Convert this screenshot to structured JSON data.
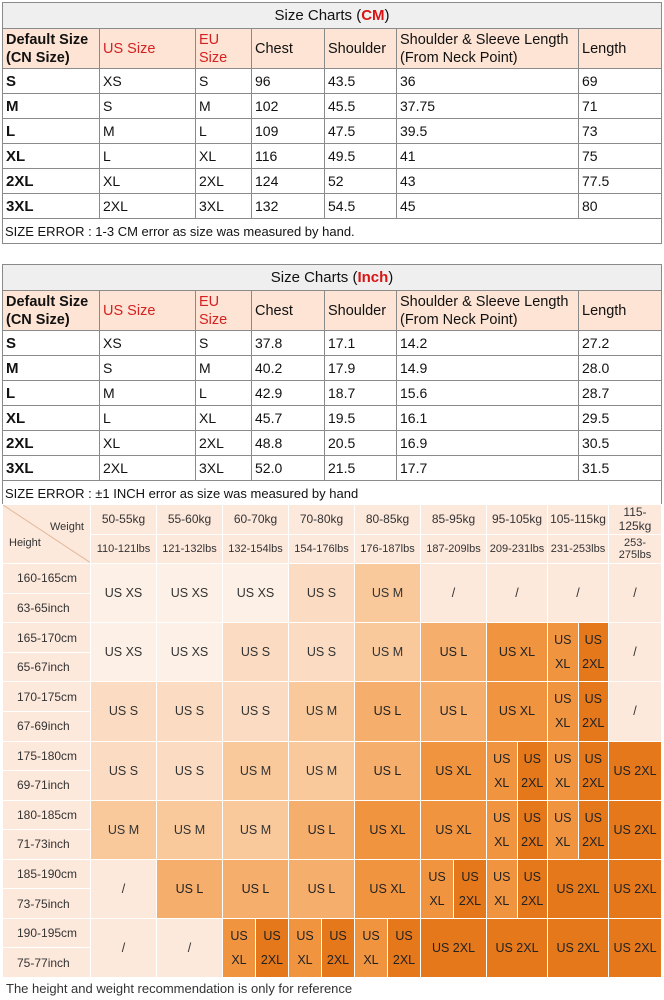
{
  "cm_chart": {
    "title_prefix": "Size Charts (",
    "unit": "CM",
    "title_suffix": ")",
    "headers": [
      "Default Size\n(CN Size)",
      "US Size",
      "EU Size",
      "Chest",
      "Shoulder",
      "Shoulder & Sleeve Length\n(From Neck Point)",
      "Length"
    ],
    "rows": [
      [
        "S",
        "XS",
        "S",
        "96",
        "43.5",
        "36",
        "69"
      ],
      [
        "M",
        "S",
        "M",
        "102",
        "45.5",
        "37.75",
        "71"
      ],
      [
        "L",
        "M",
        "L",
        "109",
        "47.5",
        "39.5",
        "73"
      ],
      [
        "XL",
        "L",
        "XL",
        "116",
        "49.5",
        "41",
        "75"
      ],
      [
        "2XL",
        "XL",
        "2XL",
        "124",
        "52",
        "43",
        "77.5"
      ],
      [
        "3XL",
        "2XL",
        "3XL",
        "132",
        "54.5",
        "45",
        "80"
      ]
    ],
    "note": "SIZE ERROR : 1-3 CM error as size was measured by hand."
  },
  "inch_chart": {
    "title_prefix": "Size Charts (",
    "unit": "Inch",
    "title_suffix": ")",
    "headers": [
      "Default Size\n(CN Size)",
      "US Size",
      "EU Size",
      "Chest",
      "Shoulder",
      "Shoulder & Sleeve Length\n(From Neck Point)",
      "Length"
    ],
    "rows": [
      [
        "S",
        "XS",
        "S",
        "37.8",
        "17.1",
        "14.2",
        "27.2"
      ],
      [
        "M",
        "S",
        "M",
        "40.2",
        "17.9",
        "14.9",
        "28.0"
      ],
      [
        "L",
        "M",
        "L",
        "42.9",
        "18.7",
        "15.6",
        "28.7"
      ],
      [
        "XL",
        "L",
        "XL",
        "45.7",
        "19.5",
        "16.1",
        "29.5"
      ],
      [
        "2XL",
        "XL",
        "2XL",
        "48.8",
        "20.5",
        "16.9",
        "30.5"
      ],
      [
        "3XL",
        "2XL",
        "3XL",
        "52.0",
        "21.5",
        "17.7",
        "31.5"
      ]
    ],
    "note": "SIZE ERROR : ±1 INCH error as size was measured by hand"
  },
  "recommendation": {
    "weight_label": "Weight",
    "height_label": "Height",
    "weights_kg": [
      "50-55kg",
      "55-60kg",
      "60-70kg",
      "70-80kg",
      "80-85kg",
      "85-95kg",
      "95-105kg",
      "105-115kg",
      "115-125kg"
    ],
    "weights_lbs": [
      "110-121lbs",
      "121-132lbs",
      "132-154lbs",
      "154-176lbs",
      "176-187lbs",
      "187-209lbs",
      "209-231lbs",
      "231-253lbs",
      "253-275lbs"
    ],
    "rows": [
      {
        "cm": "160-165cm",
        "inch": "63-65inch",
        "cells": [
          "US XS",
          "US XS",
          "US XS",
          "US S",
          "US M",
          "/",
          "/",
          "/",
          "/"
        ]
      },
      {
        "cm": "165-170cm",
        "inch": "65-67inch",
        "cells": [
          "US XS",
          "US XS",
          "US S",
          "US S",
          "US M",
          "US L",
          "US XL",
          [
            "US XL",
            "US 2XL"
          ],
          "/"
        ]
      },
      {
        "cm": "170-175cm",
        "inch": "67-69inch",
        "cells": [
          "US S",
          "US S",
          "US S",
          "US M",
          "US L",
          "US L",
          "US XL",
          [
            "US XL",
            "US 2XL"
          ],
          "/"
        ]
      },
      {
        "cm": "175-180cm",
        "inch": "69-71inch",
        "cells": [
          "US S",
          "US S",
          "US M",
          "US M",
          "US L",
          "US XL",
          [
            "US XL",
            "US 2XL"
          ],
          [
            "US XL",
            "US 2XL"
          ],
          "US 2XL"
        ]
      },
      {
        "cm": "180-185cm",
        "inch": "71-73inch",
        "cells": [
          "US M",
          "US M",
          "US M",
          "US L",
          "US XL",
          "US XL",
          [
            "US XL",
            "US 2XL"
          ],
          [
            "US XL",
            "US 2XL"
          ],
          "US 2XL"
        ]
      },
      {
        "cm": "185-190cm",
        "inch": "73-75inch",
        "cells": [
          "/",
          "US L",
          "US L",
          "US L",
          "US XL",
          [
            "US XL",
            "US 2XL"
          ],
          [
            "US XL",
            "US 2XL"
          ],
          "US 2XL",
          "US 2XL"
        ]
      },
      {
        "cm": "190-195cm",
        "inch": "75-77inch",
        "cells": [
          "/",
          "/",
          [
            "US XL",
            "US 2XL"
          ],
          [
            "US XL",
            "US 2XL"
          ],
          [
            "US XL",
            "US 2XL"
          ],
          "US 2XL",
          "US 2XL",
          "US 2XL",
          "US 2XL"
        ]
      }
    ],
    "colors": {
      "US XS": "#fdf0e6",
      "US S": "#fbdcc2",
      "US M": "#f9c99c",
      "US L": "#f6ae6c",
      "US XL": "#f19440",
      "US 2XL": "#e6781c",
      "/": "#fde9dc"
    },
    "footer": "The height and weight recommendation is only for reference"
  }
}
